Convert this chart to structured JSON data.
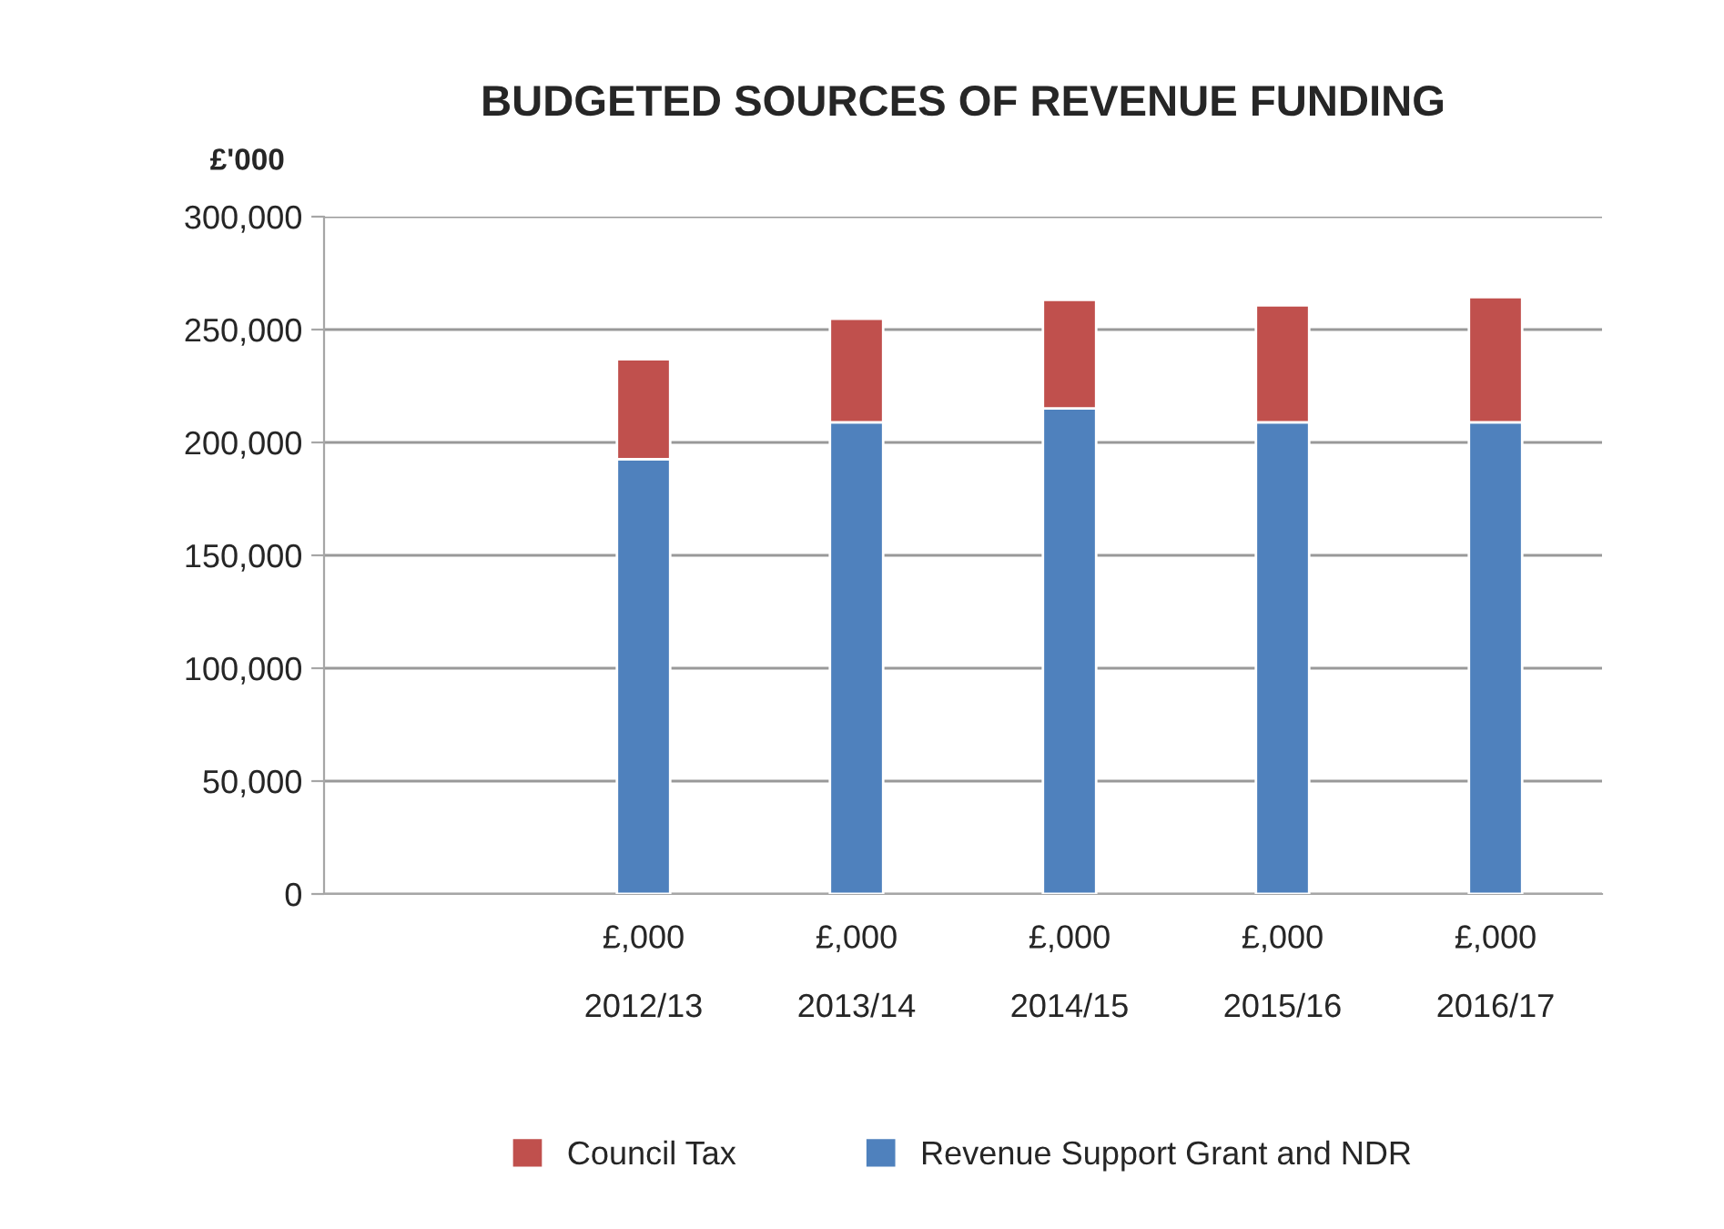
{
  "chart_data": {
    "type": "bar",
    "title": "BUDGETED SOURCES OF REVENUE FUNDING",
    "ylabel": "£'000",
    "categories": [
      null,
      "£,000\n2012/13",
      "£,000\n2013/14",
      "£,000\n2014/15",
      "£,000\n2015/16",
      "£,000\n2016/17"
    ],
    "stacked": true,
    "series": [
      {
        "name": "Revenue Support Grant and NDR",
        "color": "#4f81bd",
        "values": [
          null,
          192600,
          208900,
          215100,
          208900,
          208900
        ]
      },
      {
        "name": "Council Tax",
        "color": "#c0504d",
        "values": [
          null,
          44300,
          45900,
          48100,
          51800,
          55500
        ]
      }
    ],
    "ylim": [
      0,
      300000
    ],
    "yticks": [
      {
        "value": 0,
        "label": "0"
      },
      {
        "value": 50000,
        "label": "50,000"
      },
      {
        "value": 100000,
        "label": "100,000"
      },
      {
        "value": 150000,
        "label": "150,000"
      },
      {
        "value": 200000,
        "label": "200,000"
      },
      {
        "value": 250000,
        "label": "250,000"
      },
      {
        "value": 300000,
        "label": "300,000"
      }
    ],
    "grid": "y",
    "legend": "bottom"
  }
}
